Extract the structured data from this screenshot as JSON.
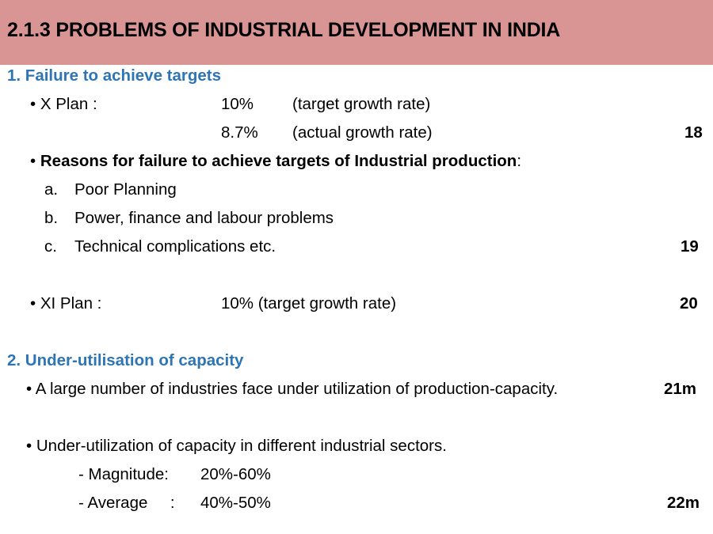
{
  "title": "2.1.3  PROBLEMS OF INDUSTRIAL DEVELOPMENT IN INDIA",
  "section1": {
    "heading": "1.  Failure to achieve targets",
    "x_plan_label": "• X Plan :",
    "x_plan_target_value": "10%",
    "x_plan_target_note": "(target growth rate)",
    "x_plan_actual_value": "8.7%",
    "x_plan_actual_note": "(actual growth rate)",
    "ref1": "18",
    "reasons_bullet": "• ",
    "reasons_bold": "Reasons for failure to achieve targets of Industrial production",
    "reasons_colon": ":",
    "reasons": [
      {
        "letter": "a.",
        "text": "Poor Planning"
      },
      {
        "letter": "b.",
        "text": "Power, finance and labour problems"
      },
      {
        "letter": "c.",
        "text": "Technical complications etc."
      }
    ],
    "ref2": "19",
    "xi_plan_label": "• XI Plan :",
    "xi_plan_value": "10% (target growth rate)",
    "ref3": "20"
  },
  "section2": {
    "heading": "2. Under-utilisation of capacity",
    "bullet1": "• A large number of industries face under utilization of production-capacity.",
    "ref4": "21m",
    "bullet2": "• Under-utilization of capacity in different industrial sectors.",
    "magnitude_label": "- Magnitude:",
    "magnitude_value": "20%-60%",
    "average_label": "- Average     :",
    "average_value": "40%-50%",
    "ref5": "22m"
  }
}
